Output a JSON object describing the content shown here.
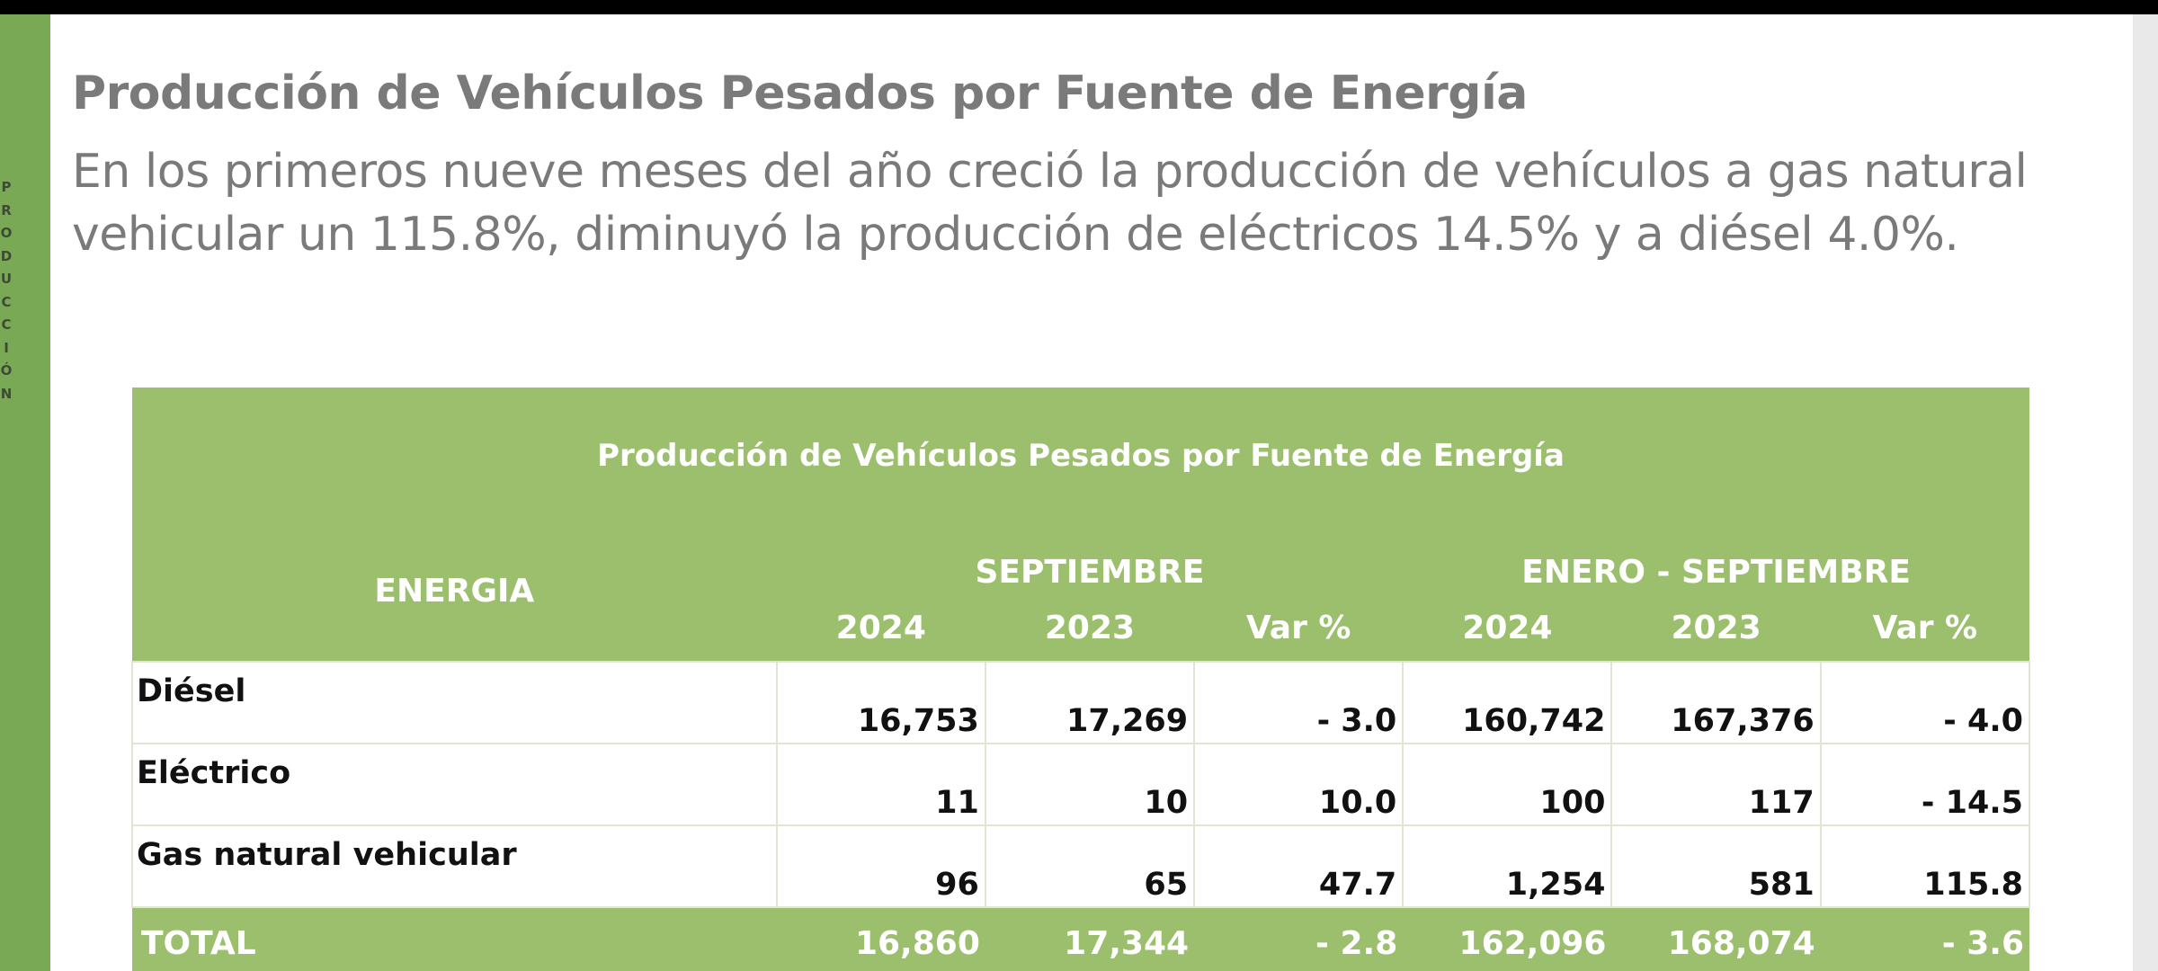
{
  "sidebar": {
    "letters": [
      "P",
      "R",
      "O",
      "D",
      "U",
      "C",
      "C",
      "I",
      "Ó",
      "N"
    ]
  },
  "heading": {
    "title": "Producción de Vehículos Pesados por Fuente de Energía",
    "subtitle": "En los primeros nueve meses del año creció la producción de vehículos a gas natural vehicular un 115.8%, diminuyó la producción de eléctricos 14.5% y a diésel 4.0%."
  },
  "table": {
    "title": "Producción de Vehículos Pesados por Fuente de Energía",
    "energy_header": "ENERGIA",
    "period_1": "SEPTIEMBRE",
    "period_2": "ENERO - SEPTIEMBRE",
    "columns": [
      "2024",
      "2023",
      "Var %",
      "2024",
      "2023",
      "Var %"
    ],
    "rows": [
      {
        "label": "Diésel",
        "values": [
          "16,753",
          "17,269",
          "- 3.0",
          "160,742",
          "167,376",
          "- 4.0"
        ]
      },
      {
        "label": "Eléctrico",
        "values": [
          "11",
          "10",
          "10.0",
          "100",
          "117",
          "- 14.5"
        ]
      },
      {
        "label": "Gas natural vehicular",
        "values": [
          "96",
          "65",
          "47.7",
          "1,254",
          "581",
          "115.8"
        ]
      }
    ],
    "total": {
      "label": "TOTAL",
      "values": [
        "16,860",
        "17,344",
        "- 2.8",
        "162,096",
        "168,074",
        "- 3.6"
      ]
    }
  },
  "colors": {
    "accent_green": "#9bbf6c",
    "sidebar_green": "#7aa956",
    "heading_gray": "#7a7a7a"
  }
}
